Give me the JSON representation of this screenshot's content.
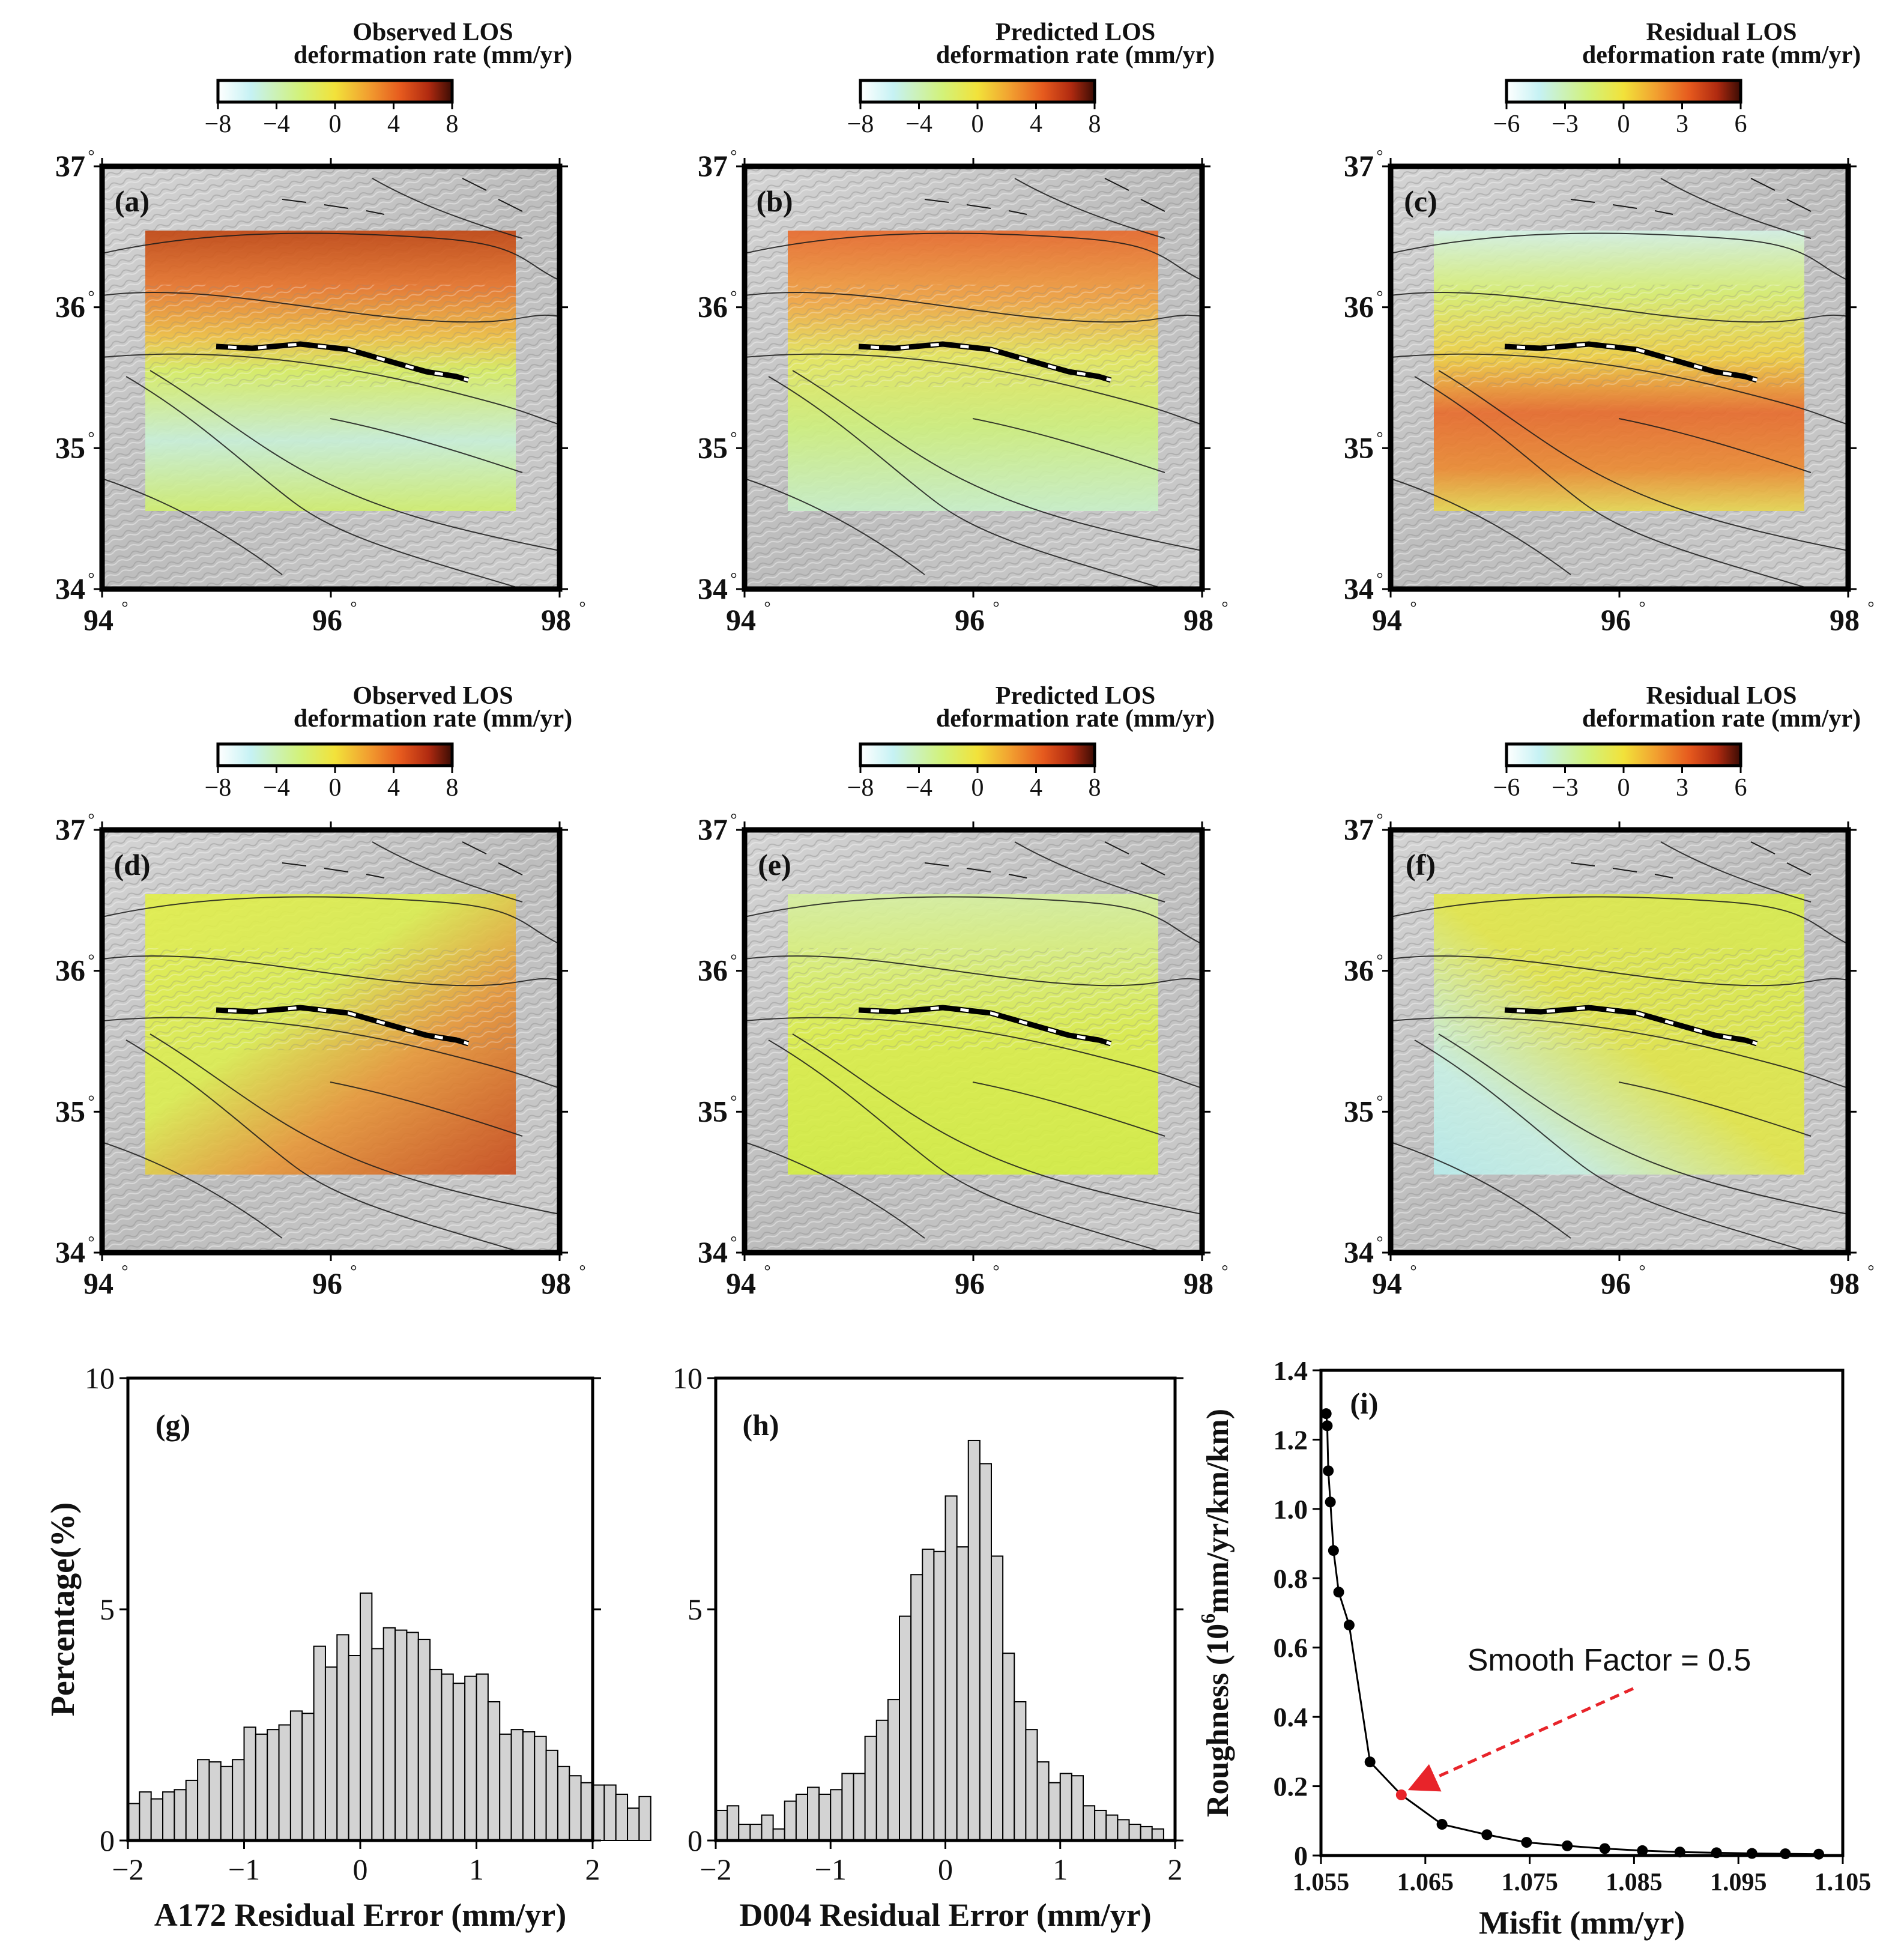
{
  "maps": [
    {
      "label": "(a)",
      "title_line1": "Observed LOS",
      "title_line2": "deformation rate (mm/yr)",
      "cbar_ticks": [
        "−8",
        "−4",
        "0",
        "4",
        "8"
      ],
      "cbar_range": [
        -8,
        8
      ],
      "field": "observed_a172"
    },
    {
      "label": "(b)",
      "title_line1": "Predicted LOS",
      "title_line2": "deformation rate (mm/yr)",
      "cbar_ticks": [
        "−8",
        "−4",
        "0",
        "4",
        "8"
      ],
      "cbar_range": [
        -8,
        8
      ],
      "field": "predicted_a172"
    },
    {
      "label": "(c)",
      "title_line1": "Residual LOS",
      "title_line2": "deformation rate (mm/yr)",
      "cbar_ticks": [
        "−6",
        "−3",
        "0",
        "3",
        "6"
      ],
      "cbar_range": [
        -6,
        6
      ],
      "field": "residual_a172"
    },
    {
      "label": "(d)",
      "title_line1": "Observed LOS",
      "title_line2": "deformation rate (mm/yr)",
      "cbar_ticks": [
        "−8",
        "−4",
        "0",
        "4",
        "8"
      ],
      "cbar_range": [
        -8,
        8
      ],
      "field": "observed_d004"
    },
    {
      "label": "(e)",
      "title_line1": "Predicted LOS",
      "title_line2": "deformation rate (mm/yr)",
      "cbar_ticks": [
        "−8",
        "−4",
        "0",
        "4",
        "8"
      ],
      "cbar_range": [
        -8,
        8
      ],
      "field": "predicted_d004"
    },
    {
      "label": "(f)",
      "title_line1": "Residual LOS",
      "title_line2": "deformation rate (mm/yr)",
      "cbar_ticks": [
        "−6",
        "−3",
        "0",
        "3",
        "6"
      ],
      "cbar_range": [
        -6,
        6
      ],
      "field": "residual_d004"
    }
  ],
  "map_axes": {
    "lat_ticks": [
      "37",
      "36",
      "35",
      "34"
    ],
    "lon_ticks": [
      "94",
      "96",
      "98"
    ],
    "degree_symbol": "°",
    "lon_range": [
      94,
      98
    ],
    "lat_range": [
      34,
      37
    ]
  },
  "colors": {
    "cmap": [
      "#ffffff",
      "#c6f2f4",
      "#d2f27a",
      "#f2e23a",
      "#f2a030",
      "#e65a1e",
      "#b02a10",
      "#3a0c04"
    ],
    "hillshade": "#c8c8c8",
    "histogram_bar": "#d3d3d3",
    "arrow": "#e8242a",
    "highlight_point": "#e8242a"
  },
  "chart_data": [
    {
      "type": "bar",
      "label": "(g)",
      "title": "",
      "xlabel": "A172 Residual Error (mm/yr)",
      "ylabel": "Percentage(%)",
      "xlim": [
        -2,
        2
      ],
      "ylim": [
        0,
        10
      ],
      "x_ticks": [
        "−2",
        "−1",
        "0",
        "1",
        "2"
      ],
      "y_ticks": [
        "0",
        "5",
        "10"
      ],
      "bin_width": 0.1,
      "bin_start": -2.0,
      "values": [
        0.8,
        1.05,
        0.9,
        1.05,
        1.1,
        1.3,
        1.75,
        1.7,
        1.6,
        1.75,
        2.45,
        2.3,
        2.4,
        2.5,
        2.8,
        2.75,
        4.2,
        3.75,
        4.45,
        4.0,
        5.35,
        4.15,
        4.6,
        4.55,
        4.5,
        4.35,
        3.7,
        3.6,
        3.4,
        3.55,
        3.6,
        3.0,
        2.3,
        2.4,
        2.35,
        2.25,
        1.95,
        1.6,
        1.4,
        1.25,
        1.2,
        1.2,
        1.0,
        0.7,
        0.95
      ]
    },
    {
      "type": "bar",
      "label": "(h)",
      "title": "",
      "xlabel": "D004 Residual Error (mm/yr)",
      "ylabel": "",
      "xlim": [
        -2,
        2
      ],
      "ylim": [
        0,
        10
      ],
      "x_ticks": [
        "−2",
        "−1",
        "0",
        "1",
        "2"
      ],
      "y_ticks": [
        "0",
        "5",
        "10"
      ],
      "bin_width": 0.1,
      "bin_start": -2.0,
      "values": [
        0.65,
        0.75,
        0.35,
        0.35,
        0.55,
        0.25,
        0.85,
        1.0,
        1.15,
        1.0,
        1.1,
        1.45,
        1.45,
        2.25,
        2.6,
        3.05,
        4.85,
        5.75,
        6.3,
        6.25,
        7.45,
        6.35,
        8.65,
        8.15,
        6.15,
        4.05,
        3.0,
        2.4,
        1.7,
        1.25,
        1.45,
        1.4,
        0.75,
        0.65,
        0.55,
        0.45,
        0.35,
        0.3,
        0.25
      ]
    },
    {
      "type": "line",
      "label": "(i)",
      "title": "",
      "xlabel": "Misfit (mm/yr)",
      "ylabel_prefix": "Roughness (10",
      "ylabel_sup": "6",
      "ylabel_suffix": "mm/yr/km/km)",
      "xlim": [
        1.055,
        1.105
      ],
      "ylim": [
        0,
        1.4
      ],
      "x_ticks": [
        "1.055",
        "1.065",
        "1.075",
        "1.085",
        "1.095",
        "1.105"
      ],
      "y_ticks": [
        "0",
        "0.2",
        "0.4",
        "0.6",
        "0.8",
        "1.0",
        "1.2",
        "1.4"
      ],
      "x": [
        1.0555,
        1.0556,
        1.0557,
        1.0559,
        1.0562,
        1.0567,
        1.0577,
        1.0597,
        1.0627,
        1.0666,
        1.0709,
        1.0747,
        1.0786,
        1.0822,
        1.0858,
        1.0894,
        1.0929,
        1.0963,
        1.0995,
        1.1027
      ],
      "y": [
        1.275,
        1.24,
        1.11,
        1.02,
        0.88,
        0.76,
        0.665,
        0.27,
        0.175,
        0.09,
        0.06,
        0.038,
        0.028,
        0.02,
        0.014,
        0.01,
        0.008,
        0.006,
        0.005,
        0.004
      ],
      "highlight_index": 8,
      "annotation": "Smooth Factor = 0.5"
    }
  ]
}
